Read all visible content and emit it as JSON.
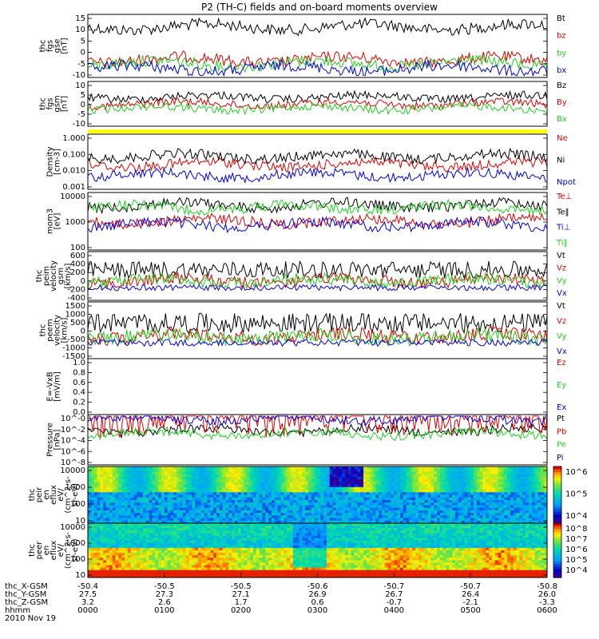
{
  "title": "P2 (TH-C) fields and on-board moments overview",
  "colors": {
    "black": "#000000",
    "red": "#e00000",
    "green": "#20d020",
    "blue": "#0000e0",
    "yellow": "#ffff00"
  },
  "chart_data": [
    {
      "type": "line",
      "ylabel_lines": [
        "thc",
        "fgs",
        "gse",
        "[nT]"
      ],
      "yticks": [
        "15",
        "10",
        "5",
        "0",
        "-5",
        "-10"
      ],
      "ylim": [
        -12,
        16
      ],
      "series": [
        {
          "name": "Bt",
          "color": "black"
        },
        {
          "name": "bz",
          "color": "red"
        },
        {
          "name": "by",
          "color": "green"
        },
        {
          "name": "bx",
          "color": "blue"
        }
      ]
    },
    {
      "type": "line",
      "ylabel_lines": [
        "thc",
        "fgs",
        "gsm",
        "[nT]"
      ],
      "yticks": [
        "10",
        "5",
        "0",
        "-5",
        "-10"
      ],
      "ylim": [
        -13,
        12
      ],
      "series": [
        {
          "name": "Bz",
          "color": "black"
        },
        {
          "name": "By",
          "color": "red"
        },
        {
          "name": "Bx",
          "color": "green"
        }
      ]
    },
    {
      "type": "line",
      "ylabel_lines": [
        "Density",
        "[cm-3]"
      ],
      "yticks": [
        "1.000",
        "0.100",
        "0.010",
        "0.001"
      ],
      "log": true,
      "ylim": [
        0.001,
        1.0
      ],
      "series": [
        {
          "name": "Ne",
          "color": "red"
        },
        {
          "name": "Ni",
          "color": "black"
        },
        {
          "name": "Npot",
          "color": "blue"
        }
      ]
    },
    {
      "type": "line",
      "ylabel_lines": [
        "mom3",
        "[eV]"
      ],
      "yticks": [
        "10000",
        "1000",
        "100"
      ],
      "log": true,
      "ylim": [
        30,
        10000
      ],
      "series": [
        {
          "name": "Te⊥",
          "color": "red"
        },
        {
          "name": "Te‖",
          "color": "black"
        },
        {
          "name": "Ti⊥",
          "color": "blue"
        },
        {
          "name": "Ti‖",
          "color": "green"
        }
      ]
    },
    {
      "type": "line",
      "ylabel_lines": [
        "thc",
        "peim",
        "velocity",
        "gsm",
        "[km/s]"
      ],
      "yticks": [
        "600",
        "400",
        "200",
        "0",
        "-200",
        "-400"
      ],
      "ylim": [
        -500,
        650
      ],
      "series": [
        {
          "name": "Vt",
          "color": "black"
        },
        {
          "name": "Vz",
          "color": "red"
        },
        {
          "name": "Vy",
          "color": "green"
        },
        {
          "name": "Vx",
          "color": "blue"
        }
      ]
    },
    {
      "type": "line",
      "ylabel_lines": [
        "thc",
        "peem",
        "velocity",
        "[km/s]"
      ],
      "yticks": [
        "1500",
        "1000",
        "500",
        "0",
        "-500",
        "-1000",
        "-1500"
      ],
      "ylim": [
        -1500,
        1500
      ],
      "series": [
        {
          "name": "Vt",
          "color": "black"
        },
        {
          "name": "Vz",
          "color": "red"
        },
        {
          "name": "Vy",
          "color": "green"
        },
        {
          "name": "Vx",
          "color": "blue"
        }
      ]
    },
    {
      "type": "line",
      "ylabel_lines": [
        "E=-VxB",
        "[mV/m]"
      ],
      "yticks": [
        "1.0",
        "0.8",
        "0.6",
        "0.4",
        "0.2",
        "0.0"
      ],
      "ylim": [
        0,
        1
      ],
      "series": [
        {
          "name": "Ez",
          "color": "red"
        },
        {
          "name": "Ey",
          "color": "green"
        },
        {
          "name": "Ex",
          "color": "blue"
        }
      ]
    },
    {
      "type": "line",
      "ylabel_lines": [
        "Pressure",
        "[nPa]"
      ],
      "yticks": [
        "10^-0",
        "10^-2",
        "10^-4",
        "10^-6",
        "10^-8"
      ],
      "log": true,
      "ylim": [
        1e-08,
        1
      ],
      "series": [
        {
          "name": "Pt",
          "color": "black"
        },
        {
          "name": "Pb",
          "color": "red"
        },
        {
          "name": "Pe",
          "color": "green"
        },
        {
          "name": "Pi",
          "color": "blue"
        }
      ]
    },
    {
      "type": "heatmap",
      "ylabel_lines": [
        "thc",
        "peir",
        "en",
        "eflux",
        "eV/",
        "(cm^2-s-",
        "sr-eV)"
      ],
      "yticks": [
        "10000",
        "1000",
        "100",
        "10"
      ],
      "colorbar_ticks": [
        "10^6",
        "10^5",
        "10^4"
      ]
    },
    {
      "type": "heatmap",
      "ylabel_lines": [
        "thc",
        "peer",
        "en",
        "eflux",
        "eV/",
        "(cm^2-s-",
        "sr-eV)"
      ],
      "yticks": [
        "10000",
        "1000",
        "100",
        "10"
      ],
      "colorbar_ticks": [
        "10^8",
        "10^7",
        "10^6",
        "10^5",
        "10^4"
      ]
    }
  ],
  "xaxis": {
    "rows": [
      {
        "label": "thc_X-GSM",
        "values": [
          "-50.4",
          "-50.5",
          "-50.5",
          "-50.6",
          "-50.7",
          "-50.7",
          "-50.8"
        ]
      },
      {
        "label": "thc_Y-GSM",
        "values": [
          "27.5",
          "27.3",
          "27.1",
          "26.9",
          "26.7",
          "26.4",
          "26.0"
        ]
      },
      {
        "label": "thc_Z-GSM",
        "values": [
          "3.2",
          "2.6",
          "1.7",
          "0.6",
          "-0.7",
          "-2.1",
          "-3.3"
        ]
      },
      {
        "label": "hhmm",
        "values": [
          "0000",
          "0100",
          "0200",
          "0300",
          "0400",
          "0500",
          "0600"
        ]
      }
    ],
    "date": "2010 Nov 19"
  }
}
